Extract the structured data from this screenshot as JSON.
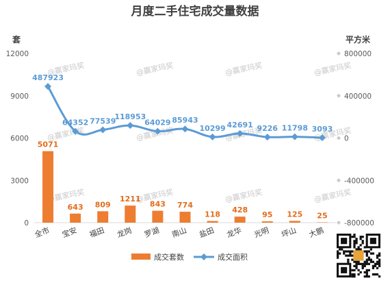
{
  "chart_data": {
    "type": "bar+line",
    "title": "月度二手住宅成交量数据",
    "left_unit": "套",
    "right_unit": "平方米",
    "categories": [
      "全市",
      "宝安",
      "福田",
      "龙岗",
      "罗湖",
      "南山",
      "盐田",
      "龙华",
      "光明",
      "坪山",
      "大鹏"
    ],
    "series": [
      {
        "name": "成交套数",
        "type": "bar",
        "axis": "left",
        "color": "#ed7d31",
        "values": [
          5071,
          643,
          809,
          1211,
          843,
          774,
          118,
          428,
          95,
          125,
          25
        ]
      },
      {
        "name": "成交面积",
        "type": "line",
        "axis": "right",
        "color": "#5b9bd5",
        "values": [
          487923,
          64352,
          77539,
          118953,
          64029,
          85943,
          10299,
          42691,
          9226,
          11798,
          3093
        ],
        "labels": [
          "487923",
          "64352",
          "77539",
          "118953",
          "64029",
          "85943",
          "10299",
          "42691",
          "9226",
          "11798",
          "3093"
        ]
      }
    ],
    "y_left": {
      "min": 0,
      "max": 12000,
      "ticks": [
        0,
        3000,
        6000,
        9000,
        12000
      ]
    },
    "y_right": {
      "min": -800000,
      "max": 800000,
      "ticks": [
        -800000,
        -400000,
        0,
        400000,
        800000
      ]
    },
    "grid": false,
    "legend_position": "bottom",
    "watermark": "@赢家玛奖"
  }
}
